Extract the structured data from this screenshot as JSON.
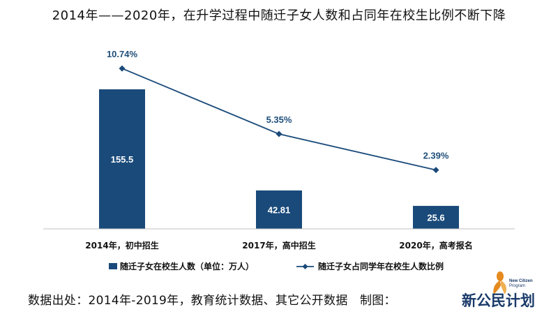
{
  "title": "2014年——2020年，在升学过程中随迁子女人数和占同年在校生比例不断下降",
  "colors": {
    "bar": "#1a4a7a",
    "line": "#1a4a7a",
    "axis": "#bfbfbf",
    "label": "#111111",
    "bar_label": "#ffffff",
    "line_label": "#1f4e79",
    "logo_text": "#1a3a6a",
    "logo_accent": "#e58a1f"
  },
  "chart_data": {
    "type": "bar",
    "categories": [
      "2014年，初中招生",
      "2017年，高中招生",
      "2020年，高考报名"
    ],
    "series": [
      {
        "name": "随迁子女在校生人数（单位：万人）",
        "type": "bar",
        "values": [
          155.5,
          42.81,
          25.6
        ],
        "labels": [
          "155.5",
          "42.81",
          "25.6"
        ]
      },
      {
        "name": "随迁子女占同学年在校生人数比例",
        "type": "line",
        "values": [
          10.74,
          5.35,
          2.39
        ],
        "labels": [
          "10.74%",
          "5.35%",
          "2.39%"
        ]
      }
    ],
    "legend_position": "bottom",
    "grid": false
  },
  "footer": "数据出处：2014年-2019年，教育统计数据、其它公开数据　制图：",
  "logo": {
    "text": "新公民计划",
    "subtitle_1": "New Citizen",
    "subtitle_2": "Program"
  }
}
